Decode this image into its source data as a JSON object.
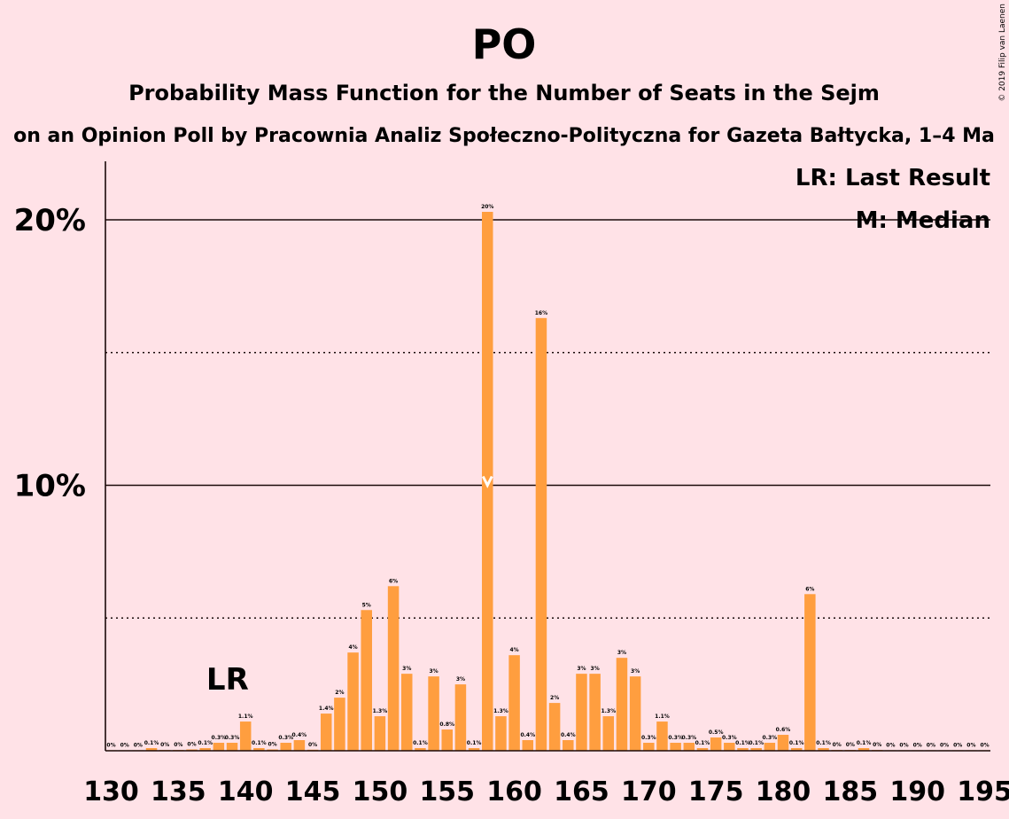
{
  "header": {
    "title": "PO",
    "subtitle": "Probability Mass Function for the Number of Seats in the Sejm",
    "source": "on an Opinion Poll by Pracownia Analiz Społeczno-Polityczna for Gazeta Bałtycka, 1–4 Ma",
    "copyright": "© 2019 Filip van Laenen"
  },
  "legend": {
    "lr": "LR: Last Result",
    "median": "M: Median"
  },
  "markers": {
    "lr_label": "LR",
    "lr_seat": 138,
    "median_seat": 158
  },
  "colors": {
    "bar": "#FF9E3F",
    "background": "#FFE2E7",
    "axis": "#1a0a0a"
  },
  "chart_data": {
    "type": "bar",
    "title": "PO",
    "xlabel": "",
    "ylabel": "",
    "xlim": [
      130,
      195
    ],
    "ylim": [
      0,
      22
    ],
    "grid": "solid at 10% and 20%, dotted at 5% and 15%",
    "legend_position": "top-right",
    "x_ticks": [
      130,
      135,
      140,
      145,
      150,
      155,
      160,
      165,
      170,
      175,
      180,
      185,
      190,
      195
    ],
    "y_ticks": [
      {
        "value": 10,
        "label": "10%"
      },
      {
        "value": 20,
        "label": "20%"
      }
    ],
    "x": [
      130,
      131,
      132,
      133,
      134,
      135,
      136,
      137,
      138,
      139,
      140,
      141,
      142,
      143,
      144,
      145,
      146,
      147,
      148,
      149,
      150,
      151,
      152,
      153,
      154,
      155,
      156,
      157,
      158,
      159,
      160,
      161,
      162,
      163,
      164,
      165,
      166,
      167,
      168,
      169,
      170,
      171,
      172,
      173,
      174,
      175,
      176,
      177,
      178,
      179,
      180,
      181,
      182,
      183,
      184,
      185,
      186,
      187,
      188,
      189,
      190,
      191,
      192,
      193,
      194,
      195
    ],
    "values": [
      0.02,
      0.02,
      0.02,
      0.1,
      0.03,
      0.03,
      0.05,
      0.1,
      0.3,
      0.3,
      1.1,
      0.1,
      0.05,
      0.3,
      0.4,
      0.04,
      1.4,
      2.0,
      3.7,
      5.3,
      1.3,
      6.2,
      2.9,
      0.1,
      2.8,
      0.8,
      2.5,
      0.1,
      20.3,
      1.3,
      3.6,
      0.4,
      16.3,
      1.8,
      0.4,
      2.9,
      2.9,
      1.3,
      3.5,
      2.8,
      0.3,
      1.1,
      0.3,
      0.3,
      0.1,
      0.5,
      0.3,
      0.1,
      0.1,
      0.3,
      0.6,
      0.1,
      5.9,
      0.1,
      0.03,
      0.03,
      0.1,
      0.03,
      0.02,
      0.02,
      0.02,
      0.02,
      0.02,
      0.02,
      0.02,
      0.02
    ],
    "labels": [
      "0%",
      "0%",
      "0%",
      "0.1%",
      "0%",
      "0%",
      "0%",
      "0.1%",
      "0.3%",
      "0.3%",
      "1.1%",
      "0.1%",
      "0%",
      "0.3%",
      "0.4%",
      "0%",
      "1.4%",
      "2%",
      "4%",
      "5%",
      "1.3%",
      "6%",
      "3%",
      "0.1%",
      "3%",
      "0.8%",
      "3%",
      "0.1%",
      "20%",
      "1.3%",
      "4%",
      "0.4%",
      "16%",
      "2%",
      "0.4%",
      "3%",
      "3%",
      "1.3%",
      "3%",
      "3%",
      "0.3%",
      "1.1%",
      "0.3%",
      "0.3%",
      "0.1%",
      "0.5%",
      "0.3%",
      "0.1%",
      "0.1%",
      "0.3%",
      "0.6%",
      "0.1%",
      "6%",
      "0.1%",
      "0%",
      "0%",
      "0.1%",
      "0%",
      "0%",
      "0%",
      "0%",
      "0%",
      "0%",
      "0%",
      "0%",
      "0%"
    ]
  }
}
